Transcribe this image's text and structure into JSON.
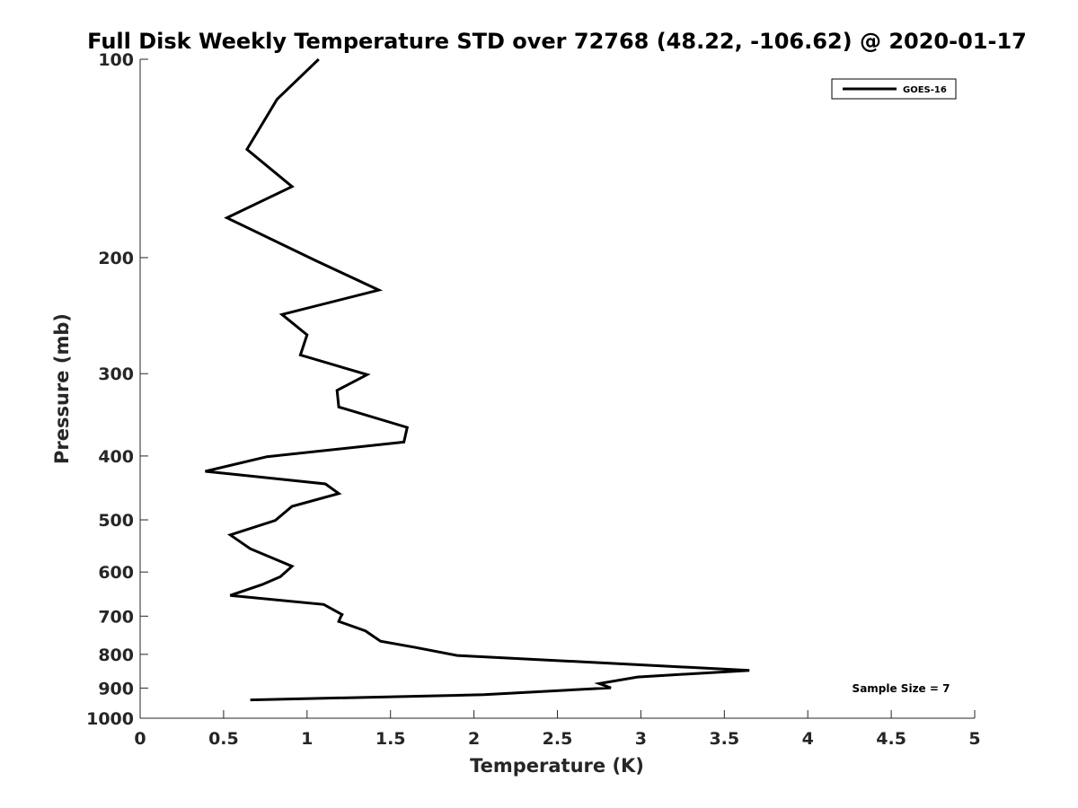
{
  "chart_data": {
    "type": "line",
    "title": "Full Disk Weekly Temperature STD over 72768 (48.22, -106.62) @ 2020-01-17",
    "xlabel": "Temperature (K)",
    "ylabel": "Pressure (mb)",
    "xlim": [
      0,
      5
    ],
    "ylim": [
      1000,
      100
    ],
    "y_scale": "log",
    "y_reversed": true,
    "x_ticks": [
      "0",
      "0.5",
      "1",
      "1.5",
      "2",
      "2.5",
      "3",
      "3.5",
      "4",
      "4.5",
      "5"
    ],
    "y_ticks": [
      "100",
      "200",
      "300",
      "400",
      "500",
      "600",
      "700",
      "800",
      "900",
      "1000"
    ],
    "grid": false,
    "legend_position": "top-right",
    "annotation": "Sample Size = 7",
    "series": [
      {
        "name": "GOES-16",
        "color": "#000000",
        "points": [
          [
            1.07,
            100
          ],
          [
            0.82,
            115
          ],
          [
            0.64,
            137
          ],
          [
            0.91,
            156
          ],
          [
            0.52,
            174
          ],
          [
            1.05,
            202
          ],
          [
            1.43,
            224
          ],
          [
            0.85,
            244
          ],
          [
            1.0,
            262
          ],
          [
            0.96,
            281
          ],
          [
            1.36,
            301
          ],
          [
            1.18,
            318
          ],
          [
            1.19,
            337
          ],
          [
            1.6,
            362
          ],
          [
            1.58,
            381
          ],
          [
            0.76,
            401
          ],
          [
            0.39,
            422
          ],
          [
            1.11,
            441
          ],
          [
            1.19,
            456
          ],
          [
            0.91,
            477
          ],
          [
            0.81,
            501
          ],
          [
            0.54,
            527
          ],
          [
            0.66,
            553
          ],
          [
            0.91,
            588
          ],
          [
            0.84,
            610
          ],
          [
            0.73,
            627
          ],
          [
            0.54,
            651
          ],
          [
            1.1,
            672
          ],
          [
            1.21,
            696
          ],
          [
            1.2,
            703
          ],
          [
            1.19,
            713
          ],
          [
            1.35,
            737
          ],
          [
            1.44,
            764
          ],
          [
            1.65,
            781
          ],
          [
            1.9,
            803
          ],
          [
            3.65,
            846
          ],
          [
            2.98,
            866
          ],
          [
            2.75,
            886
          ],
          [
            2.82,
            899
          ],
          [
            2.06,
            921
          ],
          [
            0.66,
            938
          ]
        ]
      }
    ]
  }
}
